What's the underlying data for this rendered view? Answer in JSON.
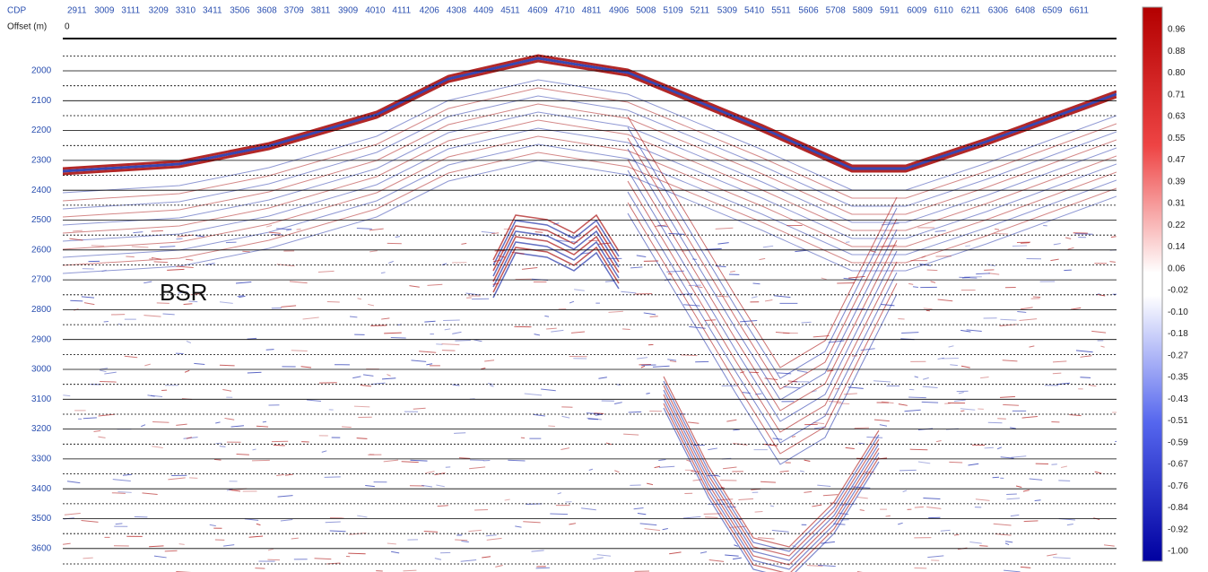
{
  "header": {
    "cdp_label": "CDP",
    "offset_label": "Offset (m)",
    "offset_value": "0"
  },
  "cdp_numbers": [
    2911,
    3009,
    3111,
    3209,
    3310,
    3411,
    3506,
    3608,
    3709,
    3811,
    3909,
    4010,
    4111,
    4206,
    4308,
    4409,
    4511,
    4609,
    4710,
    4811,
    4906,
    5008,
    5109,
    5211,
    5309,
    5410,
    5511,
    5606,
    5708,
    5809,
    5911,
    6009,
    6110,
    6211,
    6306,
    6408,
    6509,
    6611
  ],
  "time_labels": [
    2000,
    2100,
    2200,
    2300,
    2400,
    2500,
    2600,
    2700,
    2800,
    2900,
    3000,
    3100,
    3200,
    3300,
    3400,
    3500,
    3600
  ],
  "annotation": "BSR",
  "colorbar": {
    "labels": [
      "0.96",
      "0.88",
      "0.80",
      "0.71",
      "0.63",
      "0.55",
      "0.47",
      "0.39",
      "0.31",
      "0.22",
      "0.14",
      "0.06",
      "-0.02",
      "-0.10",
      "-0.18",
      "-0.27",
      "-0.35",
      "-0.43",
      "-0.51",
      "-0.59",
      "-0.67",
      "-0.76",
      "-0.84",
      "-0.92",
      "-1.00"
    ]
  }
}
